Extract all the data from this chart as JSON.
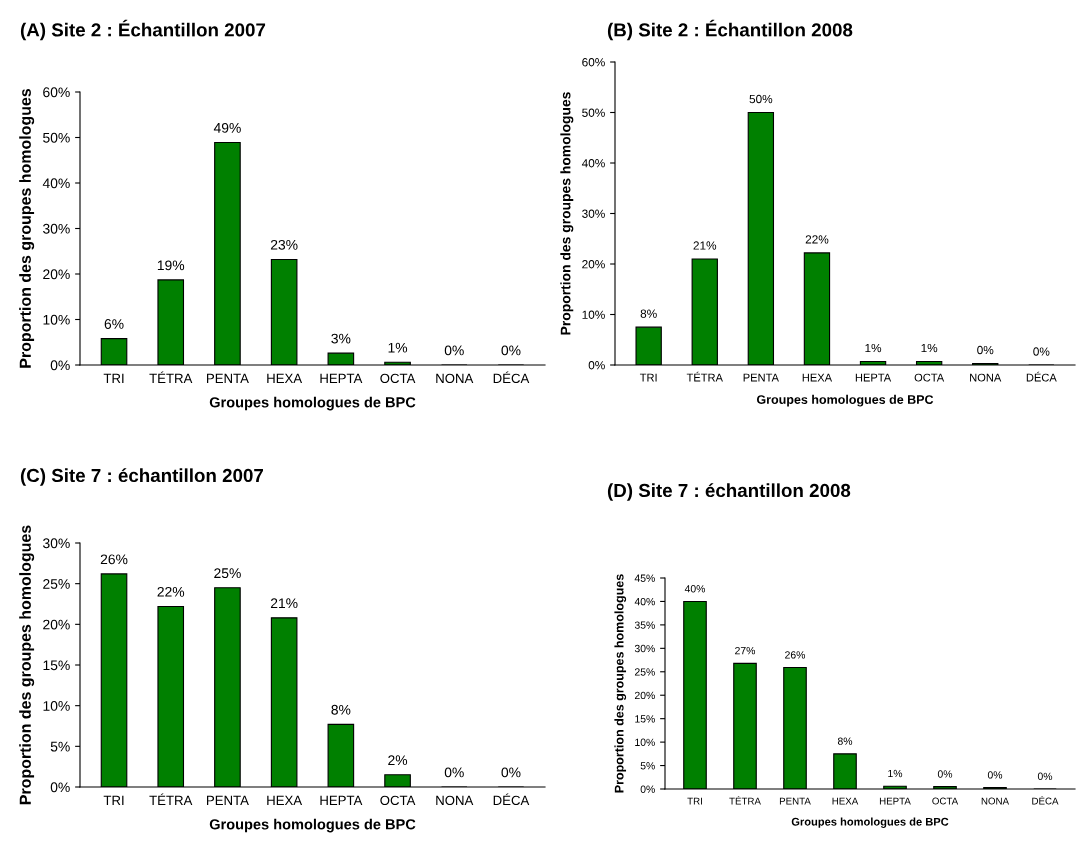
{
  "chart_data": [
    {
      "type": "bar",
      "title": "(A) Site 2 : Échantillon 2007",
      "xlabel": "Groupes homologues de BPC",
      "ylabel": "Proportion des groupes homologues",
      "categories": [
        "TRI",
        "TÉTRA",
        "PENTA",
        "HEXA",
        "HEPTA",
        "OCTA",
        "NONA",
        "DÉCA"
      ],
      "values": [
        5.8,
        18.7,
        48.9,
        23.2,
        2.6,
        0.6,
        0,
        0
      ],
      "color": "#008000",
      "value_labels": [
        "6%",
        "19%",
        "49%",
        "23%",
        "3%",
        "1%",
        "0%",
        "0%"
      ],
      "ylim": [
        0,
        60
      ],
      "yticks": [
        {
          "value": 0,
          "label": "0%"
        },
        {
          "value": 10,
          "label": "10%"
        },
        {
          "value": 20,
          "label": "20%"
        },
        {
          "value": 30,
          "label": "30%"
        },
        {
          "value": 40,
          "label": "40%"
        },
        {
          "value": 50,
          "label": "50%"
        },
        {
          "value": 60,
          "label": "60%"
        }
      ],
      "grid": false
    },
    {
      "type": "bar",
      "title": "(B) Site 2 : Échantillon 2008",
      "xlabel": "Groupes homologues de BPC",
      "ylabel": "Proportion des groupes homologues",
      "categories": [
        "TRI",
        "TÉTRA",
        "PENTA",
        "HEXA",
        "HEPTA",
        "OCTA",
        "NONA",
        "DÉCA"
      ],
      "values": [
        7.5,
        21,
        50,
        22.2,
        0.7,
        0.7,
        0.3,
        0
      ],
      "color": "#008000",
      "value_labels": [
        "8%",
        "21%",
        "50%",
        "22%",
        "1%",
        "1%",
        "0%",
        "0%"
      ],
      "ylim": [
        0,
        60
      ],
      "yticks": [
        {
          "value": 0,
          "label": "0%"
        },
        {
          "value": 10,
          "label": "10%"
        },
        {
          "value": 20,
          "label": "20%"
        },
        {
          "value": 30,
          "label": "30%"
        },
        {
          "value": 40,
          "label": "40%"
        },
        {
          "value": 50,
          "label": "50%"
        },
        {
          "value": 60,
          "label": "60%"
        }
      ],
      "grid": false
    },
    {
      "type": "bar",
      "title": "(C) Site 7 : échantillon 2007",
      "xlabel": "Groupes homologues de BPC",
      "ylabel": "Proportion des groupes homologues",
      "categories": [
        "TRI",
        "TÉTRA",
        "PENTA",
        "HEXA",
        "HEPTA",
        "OCTA",
        "NONA",
        "DÉCA"
      ],
      "values": [
        26.2,
        22.2,
        24.5,
        20.8,
        7.7,
        1.5,
        0,
        0
      ],
      "color": "#008000",
      "value_labels": [
        "26%",
        "22%",
        "25%",
        "21%",
        "8%",
        "2%",
        "0%",
        "0%"
      ],
      "ylim": [
        0,
        30
      ],
      "yticks": [
        {
          "value": 0,
          "label": "0%"
        },
        {
          "value": 5,
          "label": "5%"
        },
        {
          "value": 10,
          "label": "10%"
        },
        {
          "value": 15,
          "label": "15%"
        },
        {
          "value": 20,
          "label": "20%"
        },
        {
          "value": 25,
          "label": "25%"
        },
        {
          "value": 30,
          "label": "30%"
        }
      ],
      "grid": false
    },
    {
      "type": "bar",
      "title": "(D) Site 7 : échantillon 2008",
      "xlabel": "Groupes homologues de BPC",
      "ylabel": "Proportion des groupes homologues",
      "categories": [
        "TRI",
        "TÉTRA",
        "PENTA",
        "HEXA",
        "HEPTA",
        "OCTA",
        "NONA",
        "DÉCA"
      ],
      "values": [
        40,
        26.8,
        25.9,
        7.5,
        0.6,
        0.5,
        0.3,
        0
      ],
      "color": "#008000",
      "value_labels": [
        "40%",
        "27%",
        "26%",
        "8%",
        "1%",
        "0%",
        "0%",
        "0%"
      ],
      "ylim": [
        0,
        45
      ],
      "yticks": [
        {
          "value": 0,
          "label": "0%"
        },
        {
          "value": 5,
          "label": "5%"
        },
        {
          "value": 10,
          "label": "10%"
        },
        {
          "value": 15,
          "label": "15%"
        },
        {
          "value": 20,
          "label": "20%"
        },
        {
          "value": 25,
          "label": "25%"
        },
        {
          "value": 30,
          "label": "30%"
        },
        {
          "value": 35,
          "label": "35%"
        },
        {
          "value": 40,
          "label": "40%"
        },
        {
          "value": 45,
          "label": "45%"
        }
      ],
      "grid": false
    }
  ]
}
